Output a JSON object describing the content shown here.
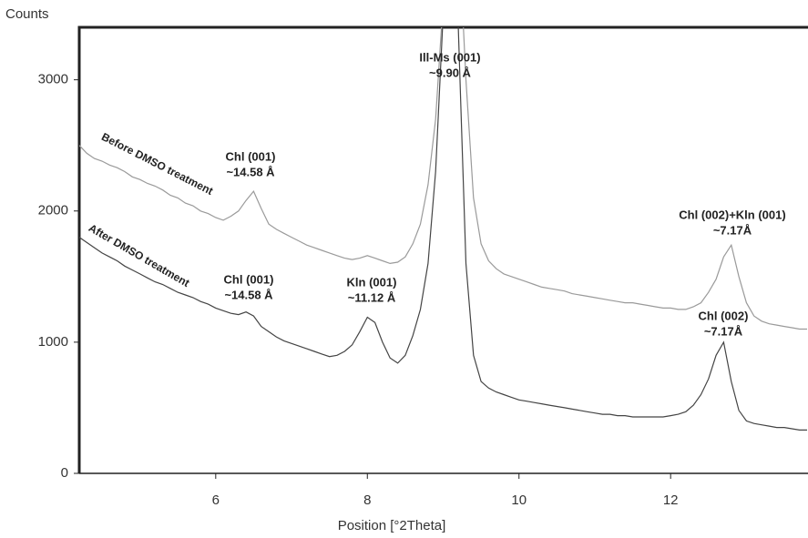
{
  "chart_data": {
    "type": "line",
    "ylabel": "Counts",
    "xlabel": "Position [°2Theta]",
    "x": [
      4.2,
      4.3,
      4.4,
      4.5,
      4.6,
      4.7,
      4.8,
      4.9,
      5.0,
      5.1,
      5.2,
      5.3,
      5.4,
      5.5,
      5.6,
      5.7,
      5.8,
      5.9,
      6.0,
      6.1,
      6.2,
      6.3,
      6.4,
      6.5,
      6.6,
      6.7,
      6.8,
      6.9,
      7.0,
      7.1,
      7.2,
      7.3,
      7.4,
      7.5,
      7.6,
      7.7,
      7.8,
      7.9,
      8.0,
      8.1,
      8.2,
      8.3,
      8.4,
      8.5,
      8.6,
      8.7,
      8.8,
      8.9,
      9.0,
      9.1,
      9.2,
      9.3,
      9.4,
      9.5,
      9.6,
      9.7,
      9.8,
      9.9,
      10.0,
      10.1,
      10.2,
      10.3,
      10.4,
      10.5,
      10.6,
      10.7,
      10.8,
      10.9,
      11.0,
      11.1,
      11.2,
      11.3,
      11.4,
      11.5,
      11.6,
      11.7,
      11.8,
      11.9,
      12.0,
      12.1,
      12.2,
      12.3,
      12.4,
      12.5,
      12.6,
      12.7,
      12.8,
      12.9,
      13.0,
      13.1,
      13.2,
      13.3,
      13.4,
      13.5,
      13.6,
      13.7,
      13.8
    ],
    "series": [
      {
        "name": "Before DMSO treatment",
        "color": "#9a9a9a",
        "values": [
          2500,
          2440,
          2400,
          2380,
          2350,
          2330,
          2300,
          2260,
          2240,
          2210,
          2190,
          2160,
          2120,
          2100,
          2060,
          2040,
          2000,
          1980,
          1950,
          1930,
          1960,
          2000,
          2080,
          2150,
          2020,
          1900,
          1860,
          1830,
          1800,
          1770,
          1740,
          1720,
          1700,
          1680,
          1660,
          1640,
          1630,
          1640,
          1660,
          1640,
          1620,
          1600,
          1610,
          1650,
          1750,
          1900,
          2200,
          2700,
          3600,
          4500,
          4200,
          3000,
          2100,
          1750,
          1620,
          1560,
          1520,
          1500,
          1480,
          1460,
          1440,
          1420,
          1410,
          1400,
          1390,
          1370,
          1360,
          1350,
          1340,
          1330,
          1320,
          1310,
          1300,
          1300,
          1290,
          1280,
          1270,
          1260,
          1260,
          1250,
          1250,
          1270,
          1300,
          1380,
          1480,
          1650,
          1740,
          1500,
          1300,
          1200,
          1160,
          1140,
          1130,
          1120,
          1110,
          1100,
          1100
        ]
      },
      {
        "name": "After DMSO treatment",
        "color": "#444444",
        "values": [
          1800,
          1760,
          1720,
          1680,
          1650,
          1620,
          1580,
          1550,
          1520,
          1490,
          1460,
          1440,
          1410,
          1380,
          1360,
          1340,
          1310,
          1290,
          1260,
          1240,
          1220,
          1210,
          1230,
          1200,
          1120,
          1080,
          1040,
          1010,
          990,
          970,
          950,
          930,
          910,
          890,
          900,
          930,
          980,
          1080,
          1190,
          1150,
          1000,
          880,
          840,
          900,
          1050,
          1250,
          1600,
          2300,
          3500,
          4500,
          3400,
          1600,
          900,
          700,
          650,
          620,
          600,
          580,
          560,
          550,
          540,
          530,
          520,
          510,
          500,
          490,
          480,
          470,
          460,
          450,
          450,
          440,
          440,
          430,
          430,
          430,
          430,
          430,
          440,
          450,
          470,
          520,
          600,
          720,
          900,
          1000,
          700,
          480,
          400,
          380,
          370,
          360,
          350,
          350,
          340,
          330,
          330
        ]
      }
    ],
    "annotations": [
      [
        "Ill-Ms (001)",
        "~9.90 Å"
      ],
      [
        "Chl (001)",
        "~14.58 Å"
      ],
      [
        "Chl (001)",
        "~14.58 Å"
      ],
      [
        "Kln (001)",
        "~11.12 Å"
      ],
      [
        "Chl (002)+Kln (001)",
        "~7.17Å"
      ],
      [
        "Chl (002)",
        "~7.17Å"
      ]
    ],
    "xlim": [
      4.2,
      13.8
    ],
    "ylim": [
      0,
      3400
    ],
    "xticks": [
      6,
      8,
      10,
      12
    ],
    "yticks": [
      0,
      1000,
      2000,
      3000
    ]
  }
}
